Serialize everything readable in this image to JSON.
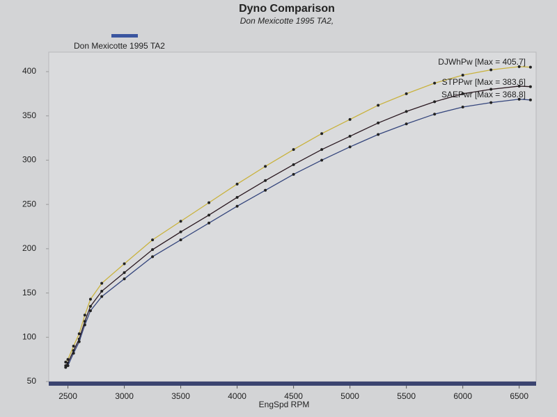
{
  "chart_data": {
    "type": "line",
    "title": "Dyno Comparison",
    "subtitle": "Don Mexicotte 1995 TA2,",
    "legend_label": "Don Mexicotte 1995 TA2",
    "legend_color": "#3a55a0",
    "x_label": "EngSpd RPM",
    "x": [
      2480,
      2500,
      2550,
      2600,
      2650,
      2700,
      2800,
      3000,
      3250,
      3500,
      3750,
      4000,
      4250,
      4500,
      4750,
      5000,
      5250,
      5500,
      5750,
      6000,
      6250,
      6500,
      6600
    ],
    "series": [
      {
        "name": "DJWhPw",
        "color": "#c9b23c",
        "annotation": "DJWhPw [Max = 405.7]",
        "values": [
          72,
          75,
          90,
          104,
          125,
          143,
          161,
          183,
          210,
          231,
          252,
          273,
          293,
          312,
          330,
          346,
          362,
          375,
          387,
          396,
          402,
          405.6,
          405
        ]
      },
      {
        "name": "STPPwr",
        "color": "#2a1820",
        "annotation": "STPPwr [Max = 383.6]",
        "values": [
          68,
          71,
          85,
          98,
          118,
          135,
          152,
          173,
          199,
          219,
          238,
          258,
          277,
          295,
          312,
          327,
          342,
          355,
          366,
          375,
          380,
          383.6,
          383
        ]
      },
      {
        "name": "SAEPwr",
        "color": "#34457c",
        "annotation": "SAEPwr [Max = 368.8]",
        "values": [
          66,
          68,
          82,
          95,
          114,
          130,
          146,
          166,
          191,
          210,
          229,
          248,
          266,
          284,
          300,
          315,
          329,
          341,
          352,
          360,
          365,
          368.8,
          368
        ]
      }
    ],
    "xlim": [
      2330,
      6650
    ],
    "ylim": [
      50,
      422
    ],
    "xticks": [
      2500,
      3000,
      3500,
      4000,
      4500,
      5000,
      5500,
      6000,
      6500
    ],
    "yticks": [
      50,
      100,
      150,
      200,
      250,
      300,
      350,
      400
    ]
  }
}
